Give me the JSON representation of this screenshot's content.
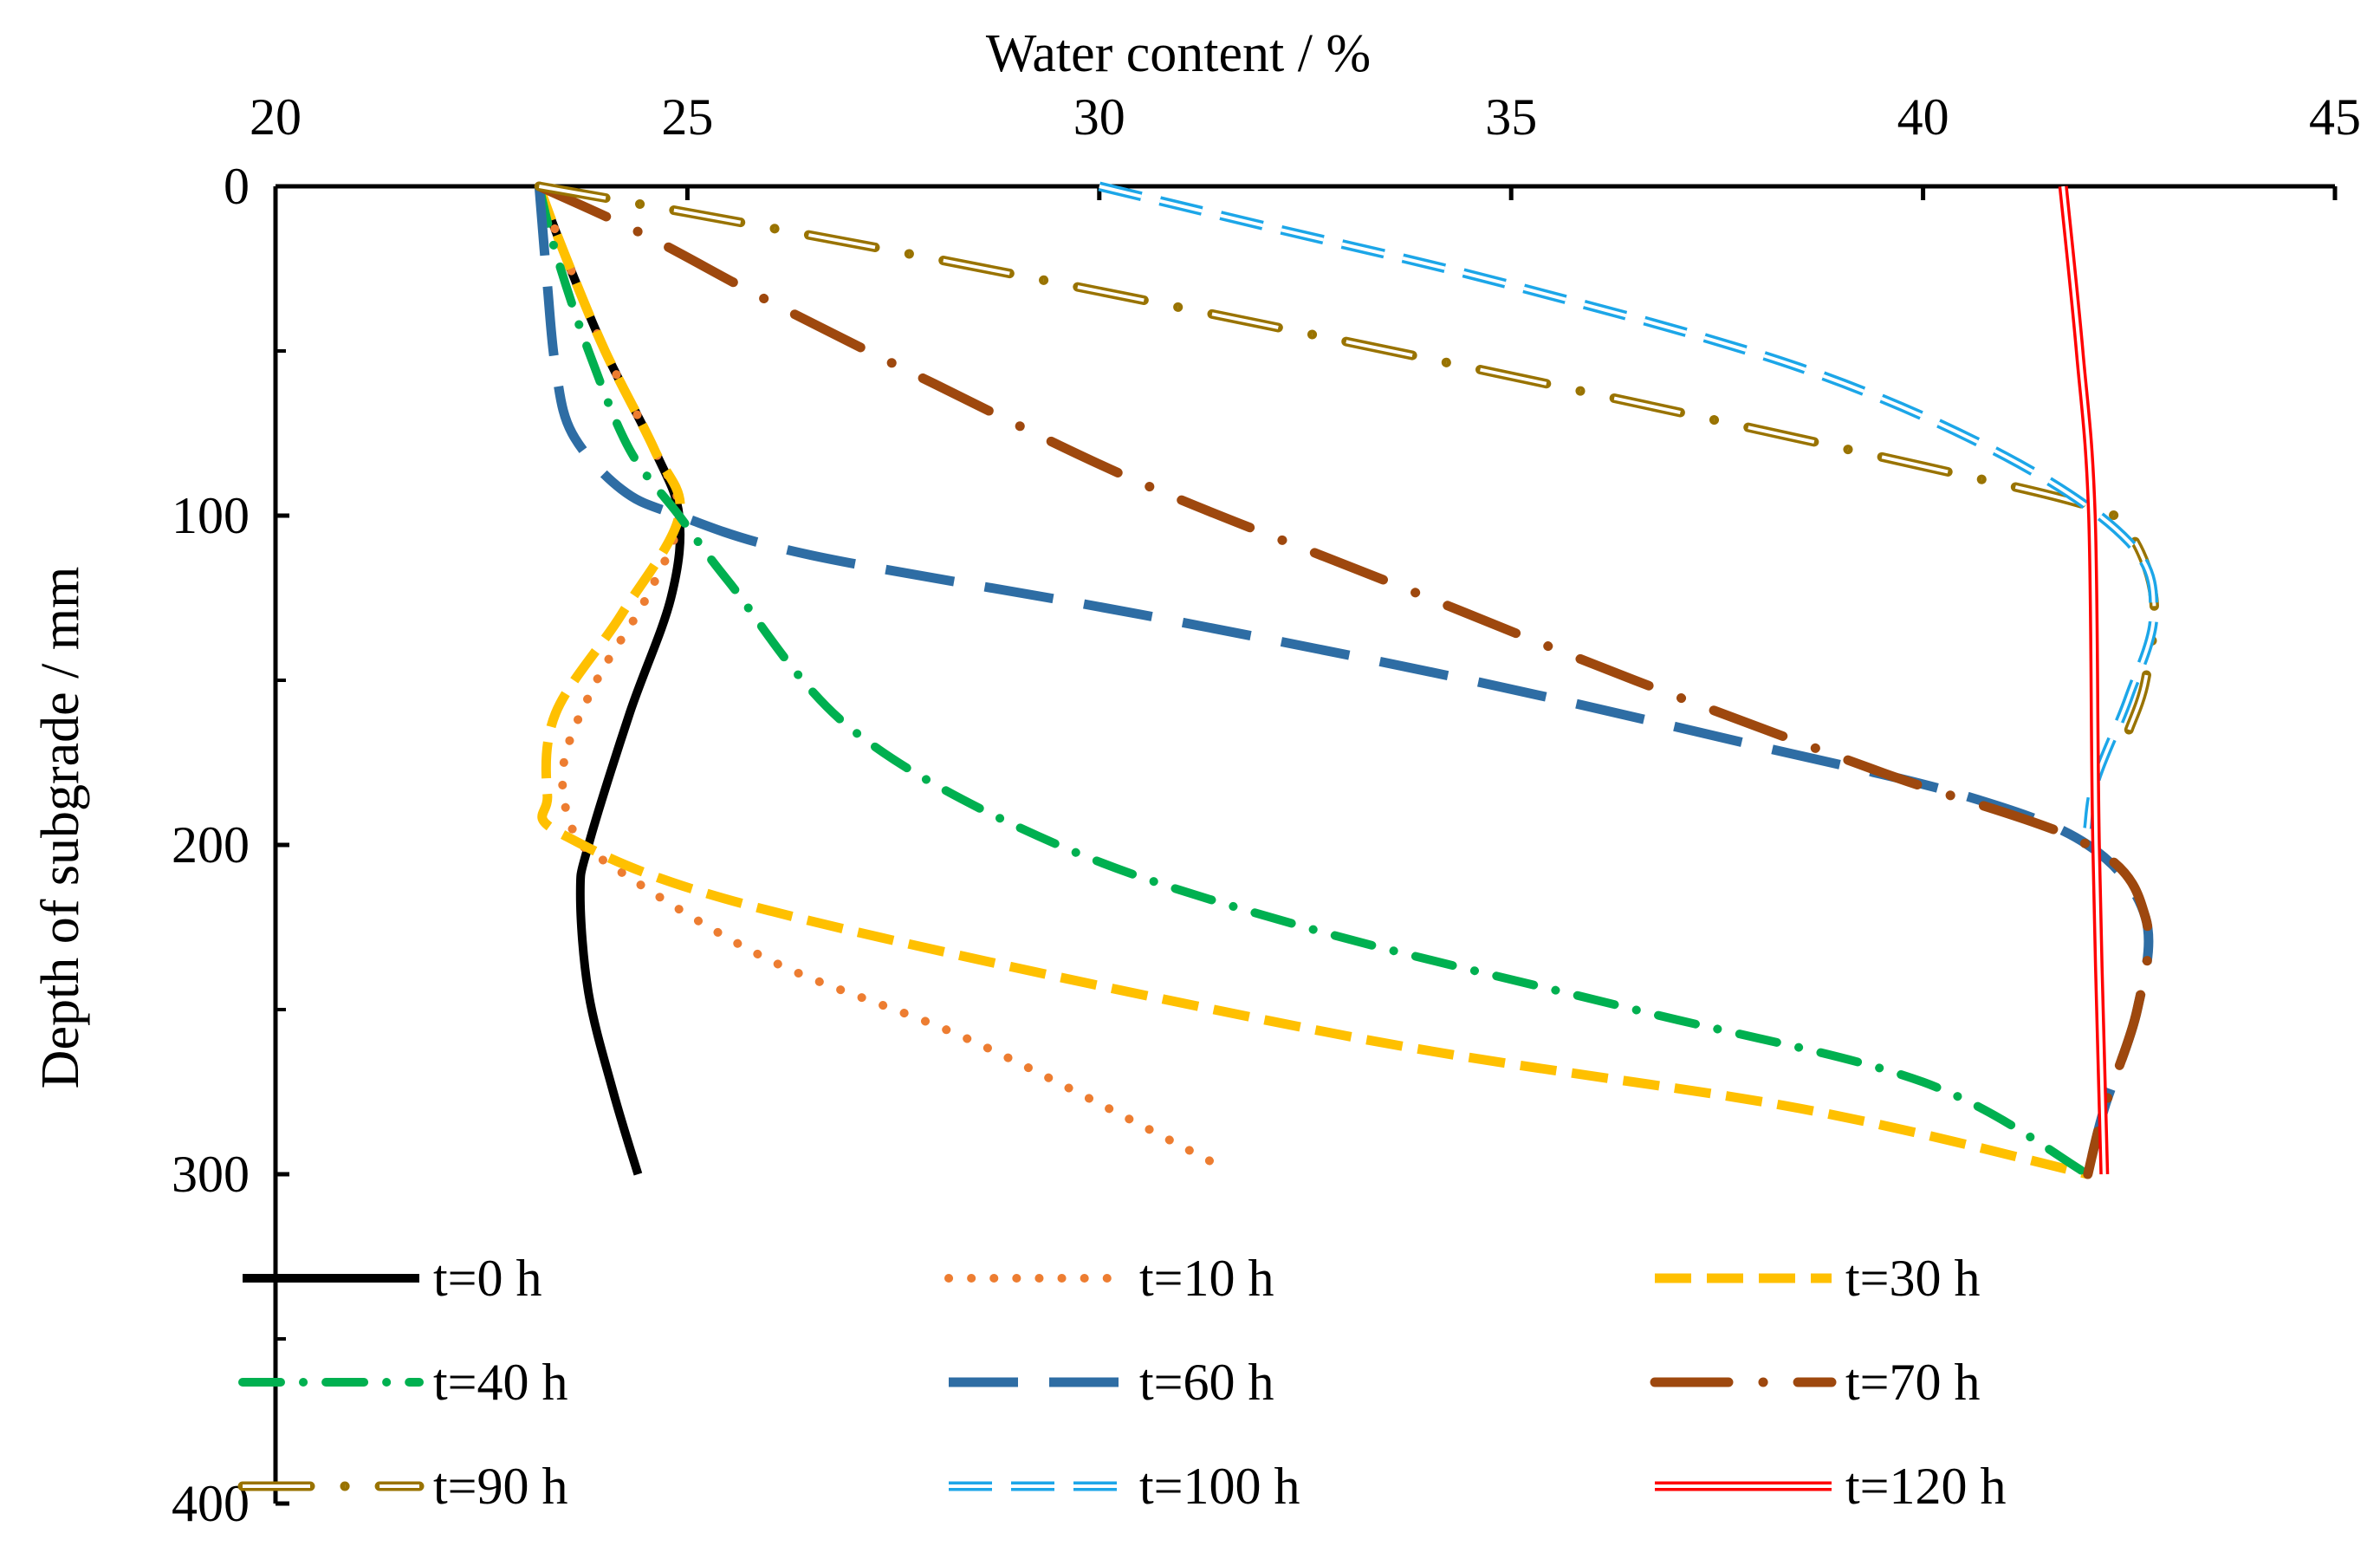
{
  "chart_data": {
    "type": "line",
    "title": "",
    "xlabel": "Water content / %",
    "ylabel": "Depth of subgrade / mm",
    "xlim": [
      20,
      45
    ],
    "ylim": [
      0,
      400
    ],
    "x_ticks": [
      20,
      25,
      30,
      35,
      40,
      45
    ],
    "y_ticks": [
      0,
      100,
      200,
      300,
      400
    ],
    "x_tick_labels": [
      "20",
      "25",
      "30",
      "35",
      "40",
      "45"
    ],
    "y_tick_labels": [
      "0",
      "100",
      "200",
      "300",
      "400"
    ],
    "x_axis_position": "top",
    "y_axis_inverted": true,
    "grid": false,
    "legend_position": "bottom-inside",
    "series": [
      {
        "name": "t=0 h",
        "color": "#000000",
        "style": "solid",
        "points": [
          [
            23.2,
            0
          ],
          [
            23.5,
            20
          ],
          [
            24.0,
            50
          ],
          [
            24.6,
            80
          ],
          [
            24.9,
            100
          ],
          [
            24.8,
            125
          ],
          [
            24.3,
            160
          ],
          [
            23.8,
            200
          ],
          [
            23.7,
            215
          ],
          [
            23.8,
            245
          ],
          [
            24.1,
            275
          ],
          [
            24.4,
            300
          ]
        ]
      },
      {
        "name": "t=10 h",
        "color": "#ED7D31",
        "style": "dotted",
        "points": [
          [
            23.2,
            0
          ],
          [
            23.5,
            20
          ],
          [
            24.0,
            50
          ],
          [
            24.6,
            80
          ],
          [
            24.9,
            100
          ],
          [
            24.5,
            125
          ],
          [
            23.9,
            150
          ],
          [
            23.5,
            175
          ],
          [
            23.6,
            195
          ],
          [
            24.0,
            205
          ],
          [
            26.0,
            235
          ],
          [
            28.5,
            260
          ],
          [
            31.5,
            298
          ]
        ]
      },
      {
        "name": "t=30 h",
        "color": "#FFC000",
        "style": "dashed",
        "points": [
          [
            23.2,
            0
          ],
          [
            23.5,
            20
          ],
          [
            24.0,
            50
          ],
          [
            24.6,
            80
          ],
          [
            24.9,
            100
          ],
          [
            24.2,
            130
          ],
          [
            23.4,
            160
          ],
          [
            23.3,
            185
          ],
          [
            23.5,
            197
          ],
          [
            26.0,
            220
          ],
          [
            33.0,
            258
          ],
          [
            38.5,
            280
          ],
          [
            42.0,
            300
          ]
        ]
      },
      {
        "name": "t=40 h",
        "color": "#00B050",
        "style": "dashdot",
        "points": [
          [
            23.2,
            0
          ],
          [
            23.4,
            20
          ],
          [
            23.8,
            50
          ],
          [
            24.3,
            80
          ],
          [
            24.9,
            100
          ],
          [
            25.5,
            120
          ],
          [
            27.0,
            165
          ],
          [
            29.5,
            200
          ],
          [
            32.5,
            225
          ],
          [
            36.5,
            250
          ],
          [
            40.0,
            272
          ],
          [
            42.0,
            300
          ]
        ]
      },
      {
        "name": "t=60 h",
        "color": "#2E6DA4",
        "style": "longdash",
        "points": [
          [
            23.2,
            0
          ],
          [
            23.3,
            30
          ],
          [
            23.4,
            55
          ],
          [
            23.6,
            75
          ],
          [
            24.2,
            92
          ],
          [
            24.9,
            100
          ],
          [
            26.5,
            112
          ],
          [
            30.5,
            130
          ],
          [
            34.5,
            150
          ],
          [
            38.0,
            170
          ],
          [
            40.5,
            185
          ],
          [
            42.0,
            200
          ],
          [
            42.7,
            222
          ],
          [
            42.6,
            250
          ],
          [
            42.2,
            280
          ],
          [
            42.0,
            300
          ]
        ]
      },
      {
        "name": "t=70 h",
        "color": "#9E480E",
        "style": "longdashdot",
        "points": [
          [
            23.2,
            0
          ],
          [
            24.5,
            15
          ],
          [
            26.0,
            35
          ],
          [
            28.0,
            60
          ],
          [
            30.5,
            90
          ],
          [
            33.5,
            120
          ],
          [
            36.5,
            150
          ],
          [
            39.5,
            178
          ],
          [
            42.0,
            200
          ],
          [
            42.7,
            222
          ],
          [
            42.6,
            250
          ],
          [
            42.2,
            280
          ],
          [
            42.0,
            300
          ]
        ]
      },
      {
        "name": "t=90 h",
        "color": "#997300",
        "style": "double-dashdot",
        "points": [
          [
            23.2,
            0
          ],
          [
            25.0,
            8
          ],
          [
            28.0,
            22
          ],
          [
            32.0,
            42
          ],
          [
            36.0,
            63
          ],
          [
            40.0,
            85
          ],
          [
            42.0,
            97
          ],
          [
            42.5,
            105
          ],
          [
            42.8,
            125
          ],
          [
            42.7,
            150
          ],
          [
            42.5,
            165
          ]
        ]
      },
      {
        "name": "t=100 h",
        "color": "#1CA6E8",
        "style": "double-dashed",
        "points": [
          [
            30.0,
            0
          ],
          [
            32.0,
            12
          ],
          [
            35.0,
            30
          ],
          [
            38.5,
            55
          ],
          [
            41.0,
            82
          ],
          [
            42.5,
            108
          ],
          [
            42.8,
            130
          ],
          [
            42.5,
            155
          ],
          [
            42.1,
            180
          ],
          [
            42.0,
            195
          ]
        ]
      },
      {
        "name": "t=120 h",
        "color": "#FF0000",
        "style": "double-solid",
        "points": [
          [
            41.7,
            0
          ],
          [
            41.9,
            50
          ],
          [
            42.05,
            100
          ],
          [
            42.1,
            200
          ],
          [
            42.2,
            300
          ]
        ]
      }
    ]
  }
}
